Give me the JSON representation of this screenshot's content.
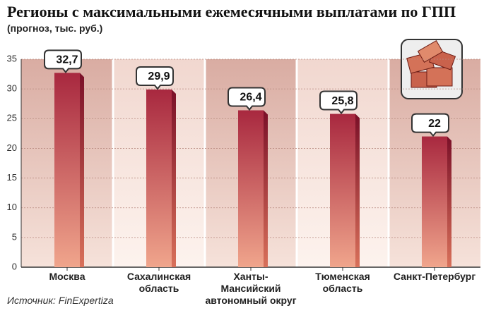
{
  "chart_data": {
    "type": "bar",
    "title": "Регионы с максимальными ежемесячными выплатами по ГПП",
    "subtitle": "(прогноз, тыс. руб.)",
    "source": "Источник: FinExpertiza",
    "categories": [
      "Москва",
      "Сахалинская\nобласть",
      "Ханты-Мансийский\nавтономный округ",
      "Тюменская\nобласть",
      "Санкт-Петербург"
    ],
    "values": [
      32.7,
      29.9,
      26.4,
      25.8,
      22
    ],
    "value_labels": [
      "32,7",
      "29,9",
      "26,4",
      "25,8",
      "22"
    ],
    "color": "#a8283f",
    "ylim": [
      0,
      35
    ],
    "yticks": [
      0,
      5,
      10,
      15,
      20,
      25,
      30,
      35
    ],
    "grid": true
  }
}
